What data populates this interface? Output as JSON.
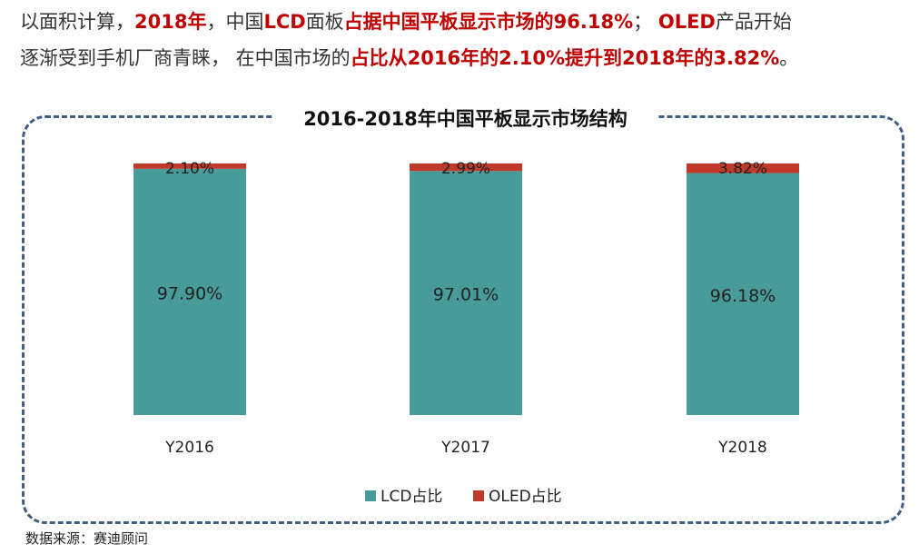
{
  "intro": {
    "line1": [
      {
        "text": "以面积计算，",
        "hl": false
      },
      {
        "text": "2018年",
        "hl": true
      },
      {
        "text": "，中国",
        "hl": false
      },
      {
        "text": "LCD",
        "hl": true
      },
      {
        "text": "面板",
        "hl": false
      },
      {
        "text": "占据中国平板显示市场的96.18%",
        "hl": true
      },
      {
        "text": "；  ",
        "hl": false
      },
      {
        "text": "OLED",
        "hl": true
      },
      {
        "text": "产品开始",
        "hl": false
      }
    ],
    "line2": [
      {
        "text": "逐渐受到手机厂商青睐，  在中国市场的",
        "hl": false
      },
      {
        "text": "占比从2016年的2.10%提升到2018年的3.82%",
        "hl": true
      },
      {
        "text": "。",
        "hl": false
      }
    ]
  },
  "chart_data": {
    "type": "bar",
    "stacked": true,
    "title": "2016-2018年中国平板显示市场结构",
    "categories": [
      "Y2016",
      "Y2017",
      "Y2018"
    ],
    "series": [
      {
        "name": "LCD占比",
        "values": [
          97.9,
          97.01,
          96.18
        ],
        "labels": [
          "97.90%",
          "97.01%",
          "96.18%"
        ],
        "color": "#479b98"
      },
      {
        "name": "OLED占比",
        "values": [
          2.1,
          2.99,
          3.82
        ],
        "labels": [
          "2.10%",
          "2.99%",
          "3.82%"
        ],
        "color": "#c0392b"
      }
    ],
    "ylim": [
      0,
      100
    ],
    "grid": false,
    "legend": "bottom"
  },
  "source": "数据来源：赛迪顾问"
}
